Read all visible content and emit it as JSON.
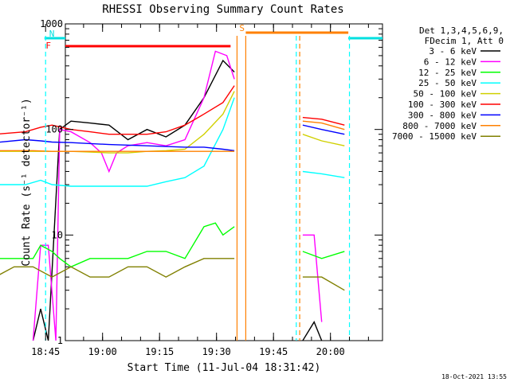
{
  "chart_data": {
    "type": "line",
    "title": "RHESSI Observing Summary Count Rates",
    "xlabel": "Start Time (11-Jul-04 18:31:42)",
    "ylabel": "Count Rate (s⁻¹ detector⁻¹)",
    "yscale": "log",
    "ylim": [
      1,
      1000
    ],
    "xlim_minutes": [
      18.5,
      102
    ],
    "x_ticks": [
      "18:45",
      "19:00",
      "19:15",
      "19:30",
      "19:45",
      "20:00"
    ],
    "y_ticks": [
      "1",
      "10",
      "100",
      "1000"
    ],
    "legend_header": [
      "Det 1,3,4,5,6,9,",
      "FDecim 1, Att 0"
    ],
    "legend_position": "right",
    "timestamp": "18-Oct-2021 13:55",
    "flags": [
      {
        "label": "N",
        "color": "#00e0e0",
        "segments": [
          [
            0,
            13
          ],
          [
            93,
            106
          ]
        ]
      },
      {
        "label": "F",
        "color": "#ff0000",
        "segments": [
          [
            15,
            62
          ]
        ]
      },
      {
        "label": "S",
        "color": "#ff8000",
        "segments": [
          [
            66,
            93
          ]
        ]
      }
    ],
    "series": [
      {
        "name": "3 - 6 keV",
        "color": "#000000",
        "points": [
          [
            10,
            1
          ],
          [
            12,
            2
          ],
          [
            14,
            1
          ],
          [
            17,
            100
          ],
          [
            20,
            120
          ],
          [
            25,
            115
          ],
          [
            30,
            110
          ],
          [
            35,
            80
          ],
          [
            40,
            100
          ],
          [
            45,
            85
          ],
          [
            50,
            110
          ],
          [
            55,
            200
          ],
          [
            60,
            450
          ],
          [
            63,
            350
          ]
        ],
        "points_b": [
          [
            81,
            1
          ],
          [
            84,
            1.5
          ],
          [
            86,
            1
          ]
        ]
      },
      {
        "name": "6 - 12 keV",
        "color": "#ff00ff",
        "points": [
          [
            10,
            1
          ],
          [
            12,
            8
          ],
          [
            14,
            8
          ],
          [
            16,
            1
          ],
          [
            17,
            100
          ],
          [
            20,
            95
          ],
          [
            25,
            75
          ],
          [
            28,
            60
          ],
          [
            30,
            40
          ],
          [
            32,
            60
          ],
          [
            35,
            70
          ],
          [
            40,
            75
          ],
          [
            45,
            70
          ],
          [
            50,
            80
          ],
          [
            55,
            200
          ],
          [
            58,
            550
          ],
          [
            61,
            500
          ],
          [
            63,
            300
          ]
        ],
        "points_b": [
          [
            81,
            10
          ],
          [
            84,
            10
          ],
          [
            86,
            1.5
          ]
        ]
      },
      {
        "name": "12 - 25 keV",
        "color": "#00ff00",
        "points": [
          [
            0,
            6
          ],
          [
            10,
            6
          ],
          [
            12,
            8
          ],
          [
            15,
            7
          ],
          [
            17,
            6
          ],
          [
            20,
            5
          ],
          [
            25,
            6
          ],
          [
            30,
            6
          ],
          [
            35,
            6
          ],
          [
            40,
            7
          ],
          [
            45,
            7
          ],
          [
            50,
            6
          ],
          [
            55,
            12
          ],
          [
            58,
            13
          ],
          [
            60,
            10
          ],
          [
            63,
            12
          ]
        ],
        "points_b": [
          [
            81,
            7
          ],
          [
            86,
            6
          ],
          [
            92,
            7
          ]
        ]
      },
      {
        "name": "25 - 50 keV",
        "color": "#00ffff",
        "points": [
          [
            0,
            30
          ],
          [
            8,
            30
          ],
          [
            12,
            33
          ],
          [
            15,
            30
          ],
          [
            20,
            29
          ],
          [
            30,
            29
          ],
          [
            40,
            29
          ],
          [
            45,
            32
          ],
          [
            50,
            35
          ],
          [
            55,
            45
          ],
          [
            60,
            100
          ],
          [
            63,
            200
          ]
        ],
        "points_b": [
          [
            81,
            40
          ],
          [
            86,
            38
          ],
          [
            92,
            35
          ]
        ]
      },
      {
        "name": "50 - 100 keV",
        "color": "#d0d000",
        "points": [
          [
            0,
            62
          ],
          [
            10,
            62
          ],
          [
            15,
            62
          ],
          [
            20,
            62
          ],
          [
            25,
            61
          ],
          [
            30,
            60
          ],
          [
            35,
            60
          ],
          [
            40,
            62
          ],
          [
            45,
            63
          ],
          [
            50,
            65
          ],
          [
            55,
            90
          ],
          [
            60,
            140
          ],
          [
            63,
            230
          ]
        ],
        "points_b": [
          [
            81,
            90
          ],
          [
            86,
            78
          ],
          [
            92,
            70
          ]
        ]
      },
      {
        "name": "100 - 300 keV",
        "color": "#ff0000",
        "points": [
          [
            0,
            90
          ],
          [
            8,
            95
          ],
          [
            12,
            105
          ],
          [
            15,
            110
          ],
          [
            20,
            100
          ],
          [
            25,
            95
          ],
          [
            30,
            90
          ],
          [
            35,
            90
          ],
          [
            40,
            90
          ],
          [
            45,
            95
          ],
          [
            50,
            110
          ],
          [
            55,
            140
          ],
          [
            60,
            180
          ],
          [
            63,
            260
          ]
        ],
        "points_b": [
          [
            81,
            130
          ],
          [
            86,
            125
          ],
          [
            92,
            110
          ]
        ]
      },
      {
        "name": "300 - 800 keV",
        "color": "#0000ff",
        "points": [
          [
            0,
            75
          ],
          [
            8,
            80
          ],
          [
            12,
            78
          ],
          [
            15,
            76
          ],
          [
            20,
            75
          ],
          [
            30,
            72
          ],
          [
            40,
            70
          ],
          [
            50,
            68
          ],
          [
            55,
            68
          ],
          [
            60,
            65
          ],
          [
            63,
            63
          ]
        ],
        "points_b": [
          [
            81,
            110
          ],
          [
            86,
            100
          ],
          [
            92,
            90
          ]
        ]
      },
      {
        "name": "800 - 7000 keV",
        "color": "#ff8000",
        "points": [
          [
            0,
            63
          ],
          [
            10,
            63
          ],
          [
            15,
            62
          ],
          [
            20,
            62
          ],
          [
            30,
            62
          ],
          [
            40,
            62
          ],
          [
            50,
            62
          ],
          [
            55,
            62
          ],
          [
            60,
            62
          ],
          [
            63,
            62
          ]
        ],
        "points_b": [
          [
            81,
            120
          ],
          [
            86,
            115
          ],
          [
            92,
            100
          ]
        ]
      },
      {
        "name": "7000 - 15000 keV",
        "color": "#808000",
        "points": [
          [
            0,
            4
          ],
          [
            5,
            5
          ],
          [
            10,
            5
          ],
          [
            15,
            4
          ],
          [
            20,
            5
          ],
          [
            25,
            4
          ],
          [
            30,
            4
          ],
          [
            35,
            5
          ],
          [
            40,
            5
          ],
          [
            45,
            4
          ],
          [
            50,
            5
          ],
          [
            55,
            6
          ],
          [
            60,
            6
          ],
          [
            63,
            6
          ]
        ],
        "points_b": [
          [
            81,
            4
          ],
          [
            86,
            4
          ],
          [
            92,
            3
          ]
        ]
      }
    ],
    "gap_markers": [
      {
        "minute": 13.3,
        "color": "#00ffff",
        "style": "dashed"
      },
      {
        "minute": 63.7,
        "color": "#ff8000",
        "style": "solid"
      },
      {
        "minute": 66.0,
        "color": "#ff8000",
        "style": "solid"
      },
      {
        "minute": 79.3,
        "color": "#00ffff",
        "style": "dashed"
      },
      {
        "minute": 80.2,
        "color": "#ff8000",
        "style": "dashed"
      },
      {
        "minute": 93.3,
        "color": "#00ffff",
        "style": "dashed"
      }
    ]
  }
}
